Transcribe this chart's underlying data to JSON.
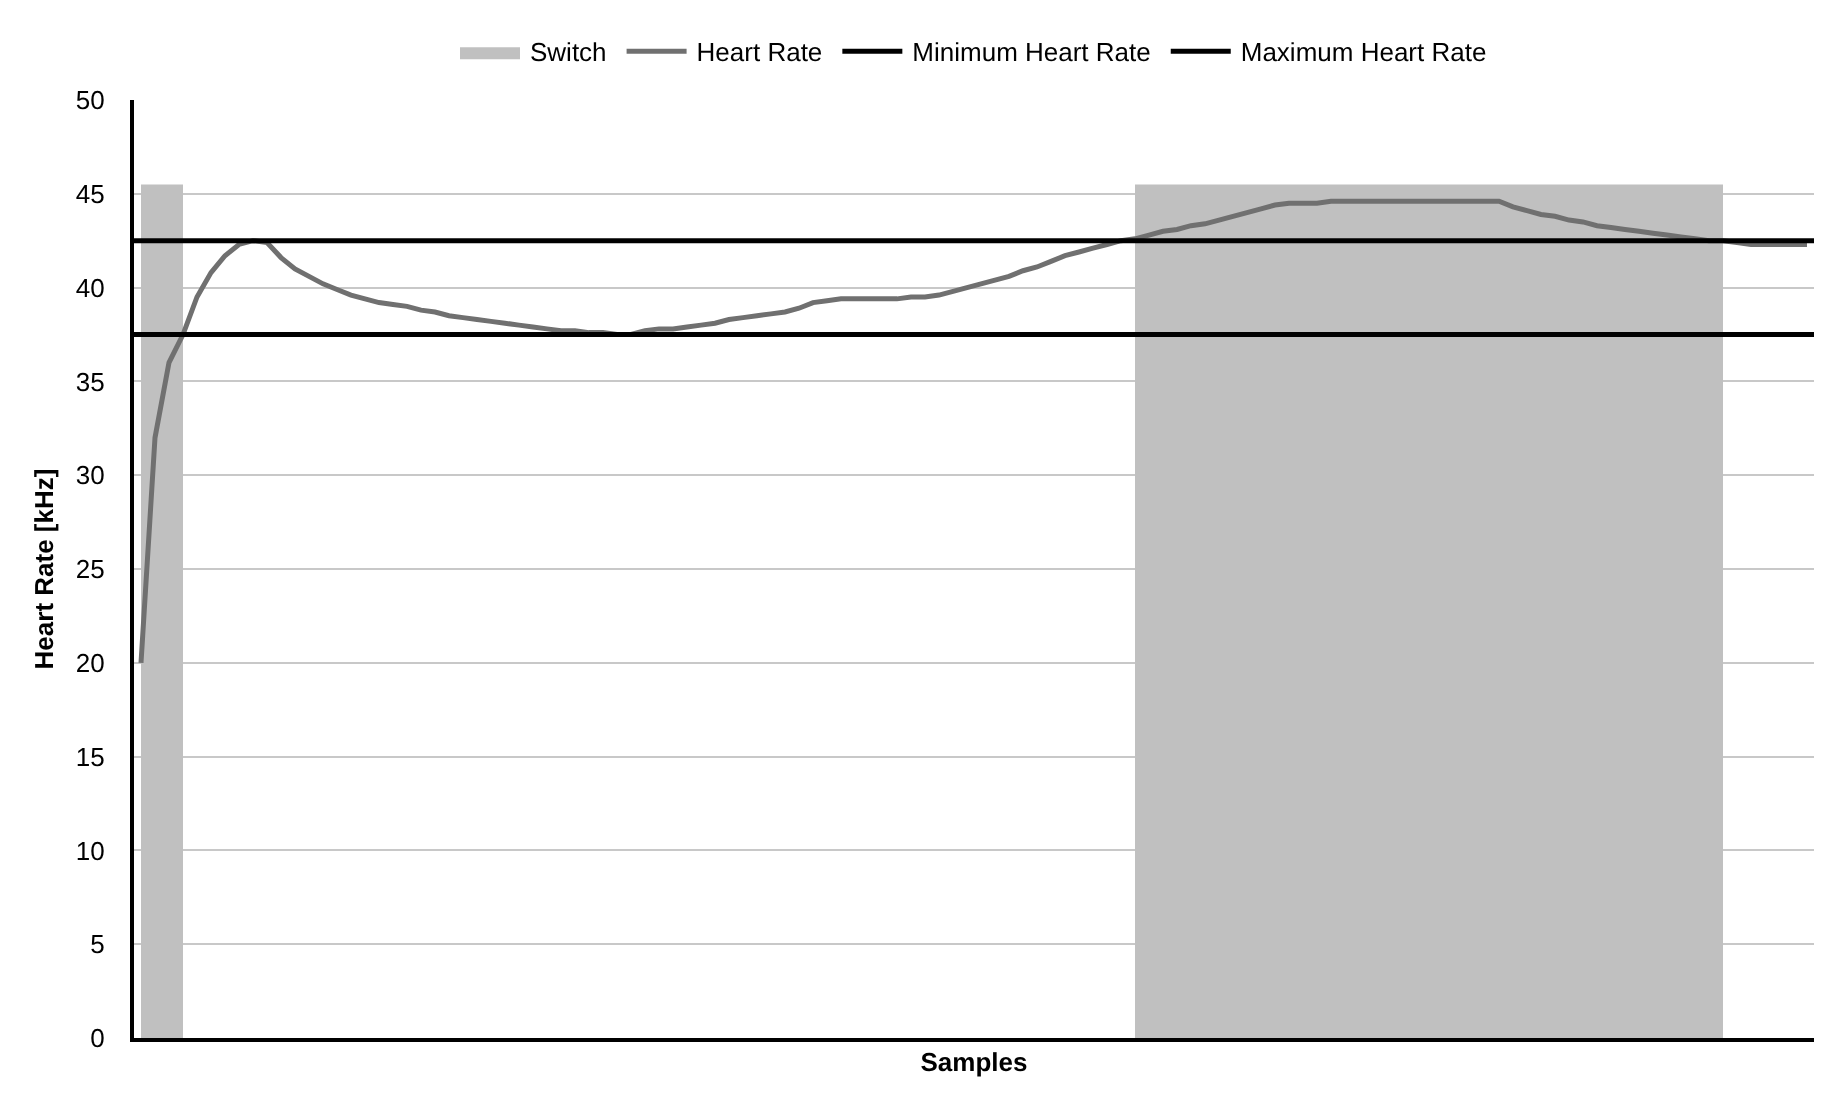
{
  "chart_data": {
    "type": "line",
    "xlabel": "Samples",
    "ylabel": "Heart Rate [kHz]",
    "categories": [
      null,
      null,
      null,
      null,
      null,
      null,
      null,
      null,
      null,
      null,
      null,
      null,
      null,
      null,
      null,
      null,
      null,
      null,
      null,
      null,
      null,
      null,
      null,
      null,
      null,
      null,
      null,
      null,
      null,
      null,
      null,
      null,
      null,
      null,
      null,
      null,
      null,
      null,
      null,
      null,
      null,
      null,
      null,
      null,
      null,
      null,
      null,
      null,
      null,
      null,
      null,
      null,
      null,
      null,
      null,
      null,
      null,
      null,
      null,
      null,
      null,
      null,
      null,
      null,
      null,
      null,
      null,
      null,
      null,
      null,
      null,
      null,
      null,
      null,
      null,
      null,
      null,
      null,
      null,
      null,
      null,
      null,
      null,
      null,
      null,
      null,
      null,
      null,
      null,
      null,
      null,
      null,
      null,
      null,
      null,
      null,
      null,
      null,
      null,
      null,
      null,
      null,
      null,
      null,
      null,
      null,
      null,
      null,
      null,
      null,
      null,
      null,
      null,
      null,
      null,
      null,
      null,
      null,
      null,
      null
    ],
    "series": [
      {
        "name": "Switch",
        "type": "area",
        "color": "#c0c0c0",
        "values": [
          45.5,
          45.5,
          45.5,
          45.5,
          null,
          null,
          null,
          null,
          null,
          null,
          null,
          null,
          null,
          null,
          null,
          null,
          null,
          null,
          null,
          null,
          null,
          null,
          null,
          null,
          null,
          null,
          null,
          null,
          null,
          null,
          null,
          null,
          null,
          null,
          null,
          null,
          null,
          null,
          null,
          null,
          null,
          null,
          null,
          null,
          null,
          null,
          null,
          null,
          null,
          null,
          null,
          null,
          null,
          null,
          null,
          null,
          null,
          null,
          null,
          null,
          null,
          null,
          null,
          null,
          null,
          null,
          null,
          null,
          null,
          null,
          null,
          45.5,
          45.5,
          45.5,
          45.5,
          45.5,
          45.5,
          45.5,
          45.5,
          45.5,
          45.5,
          45.5,
          45.5,
          45.5,
          45.5,
          45.5,
          45.5,
          45.5,
          45.5,
          45.5,
          45.5,
          45.5,
          45.5,
          45.5,
          45.5,
          45.5,
          45.5,
          45.5,
          45.5,
          45.5,
          45.5,
          45.5,
          45.5,
          45.5,
          45.5,
          45.5,
          45.5,
          45.5,
          45.5,
          45.5,
          45.5,
          45.5,
          45.5,
          45.5,
          null,
          null,
          null,
          null,
          null,
          null
        ]
      },
      {
        "name": "Heart Rate",
        "color": "#707070",
        "values": [
          20,
          32,
          36,
          37.5,
          39.5,
          40.8,
          41.7,
          42.3,
          42.5,
          42.4,
          41.6,
          41,
          40.6,
          40.2,
          39.9,
          39.6,
          39.4,
          39.2,
          39.1,
          39,
          38.8,
          38.7,
          38.5,
          38.4,
          38.3,
          38.2,
          38.1,
          38,
          37.9,
          37.8,
          37.7,
          37.7,
          37.6,
          37.6,
          37.5,
          37.5,
          37.7,
          37.8,
          37.8,
          37.9,
          38,
          38.1,
          38.3,
          38.4,
          38.5,
          38.6,
          38.7,
          38.9,
          39.2,
          39.3,
          39.4,
          39.4,
          39.4,
          39.4,
          39.4,
          39.5,
          39.5,
          39.6,
          39.8,
          40,
          40.2,
          40.4,
          40.6,
          40.9,
          41.1,
          41.4,
          41.7,
          41.9,
          42.1,
          42.3,
          42.5,
          42.6,
          42.8,
          43,
          43.1,
          43.3,
          43.4,
          43.6,
          43.8,
          44,
          44.2,
          44.4,
          44.5,
          44.5,
          44.5,
          44.6,
          44.6,
          44.6,
          44.6,
          44.6,
          44.6,
          44.6,
          44.6,
          44.6,
          44.6,
          44.6,
          44.6,
          44.6,
          44.3,
          44.1,
          43.9,
          43.8,
          43.6,
          43.5,
          43.3,
          43.2,
          43.1,
          43,
          42.9,
          42.8,
          42.7,
          42.6,
          42.5,
          42.5,
          42.4,
          42.3,
          42.3,
          42.3,
          42.3,
          42.3
        ]
      }
    ],
    "ref_lines": [
      {
        "axis": "y",
        "value": 37.5,
        "label": "Minimum Heart Rate",
        "color": "#000000"
      },
      {
        "axis": "y",
        "value": 42.5,
        "label": "Maximum Heart Rate",
        "color": "#000000"
      }
    ],
    "ylim": [
      0,
      50
    ],
    "yticks": [
      0,
      5,
      10,
      15,
      20,
      25,
      30,
      35,
      40,
      45,
      50
    ],
    "grid": "y",
    "legend": "top",
    "marker": "none",
    "line_style": "solid"
  }
}
